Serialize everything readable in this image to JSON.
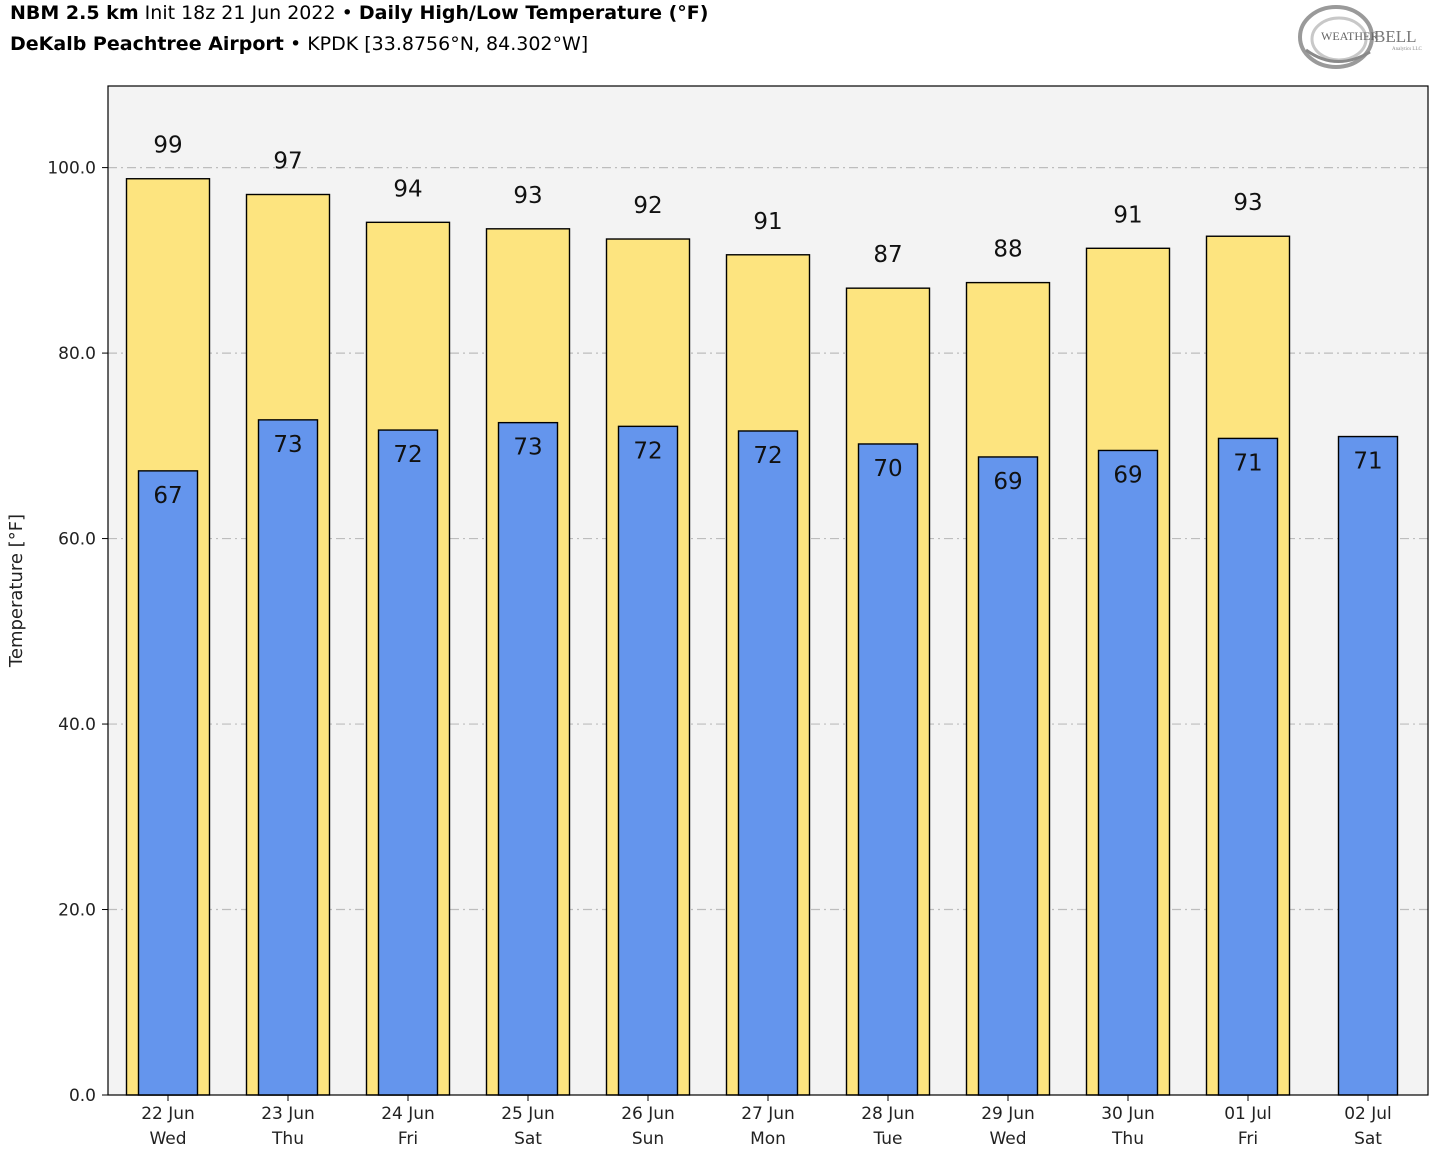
{
  "header": {
    "line1": {
      "model": "NBM 2.5 km",
      "init": "Init 18z 21 Jun 2022",
      "sep": "•",
      "product": "Daily High/Low Temperature (°F)"
    },
    "line2": {
      "station": "DeKalb Peachtree Airport",
      "sep": "•",
      "location": "KPDK [33.8756°N, 84.302°W]"
    }
  },
  "logo": {
    "text_main": "WEATHER",
    "text_bell": "BELL",
    "text_sub": "Analytics LLC"
  },
  "chart_data": {
    "type": "bar",
    "title": "Daily High/Low Temperature (°F)",
    "ylabel": "Temperature [°F]",
    "ylim": [
      0,
      108.8
    ],
    "yticks": [
      0,
      20,
      40,
      60,
      80,
      100
    ],
    "ytick_labels": [
      "0.0",
      "20.0",
      "40.0",
      "60.0",
      "80.0",
      "100.0"
    ],
    "grid": "horizontal dash-dot",
    "categories": [
      {
        "date": "22 Jun",
        "day": "Wed"
      },
      {
        "date": "23 Jun",
        "day": "Thu"
      },
      {
        "date": "24 Jun",
        "day": "Fri"
      },
      {
        "date": "25 Jun",
        "day": "Sat"
      },
      {
        "date": "26 Jun",
        "day": "Sun"
      },
      {
        "date": "27 Jun",
        "day": "Mon"
      },
      {
        "date": "28 Jun",
        "day": "Tue"
      },
      {
        "date": "29 Jun",
        "day": "Wed"
      },
      {
        "date": "30 Jun",
        "day": "Thu"
      },
      {
        "date": "01 Jul",
        "day": "Fri"
      },
      {
        "date": "02 Jul",
        "day": "Sat"
      }
    ],
    "series": [
      {
        "key": "high",
        "color": "#fde47f",
        "values": [
          98.8,
          97.1,
          94.1,
          93.4,
          92.3,
          90.6,
          87.0,
          87.6,
          91.3,
          92.6,
          null
        ],
        "labels": [
          "99",
          "97",
          "94",
          "93",
          "92",
          "91",
          "87",
          "88",
          "91",
          "93",
          ""
        ]
      },
      {
        "key": "low",
        "color": "#6495ed",
        "values": [
          67.3,
          72.8,
          71.7,
          72.5,
          72.1,
          71.6,
          70.2,
          68.8,
          69.5,
          70.8,
          71.0
        ],
        "labels": [
          "67",
          "73",
          "72",
          "73",
          "72",
          "72",
          "70",
          "69",
          "69",
          "71",
          "71"
        ]
      }
    ],
    "plot_background": "#f3f3f3"
  }
}
